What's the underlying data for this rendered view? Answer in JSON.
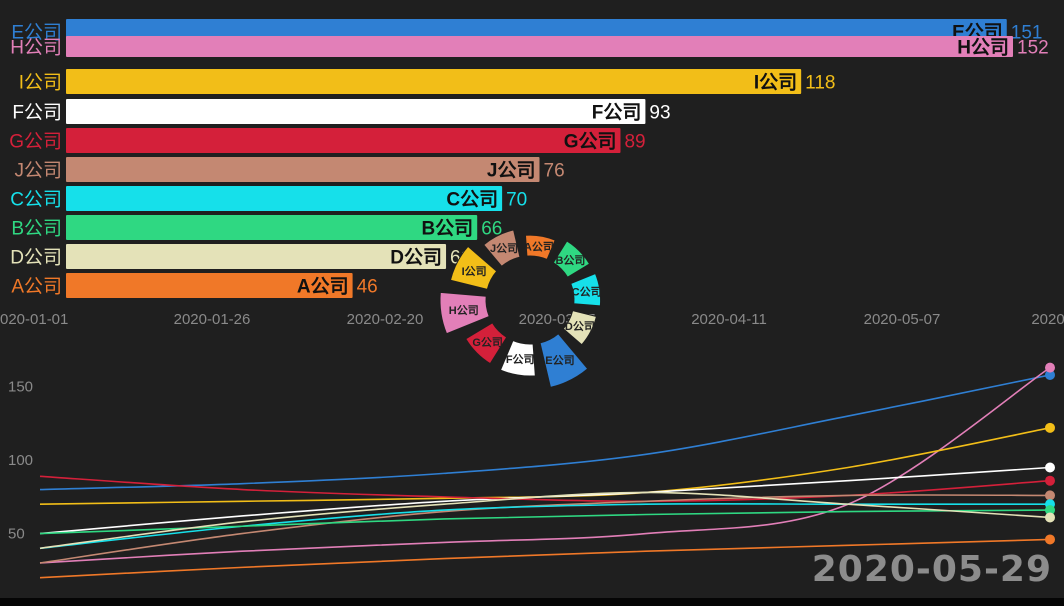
{
  "date_stamp": "2020-05-29",
  "chart_data": [
    {
      "type": "bar",
      "orientation": "horizontal",
      "categories": [
        "E公司",
        "H公司",
        "I公司",
        "F公司",
        "G公司",
        "J公司",
        "C公司",
        "B公司",
        "D公司",
        "A公司"
      ],
      "values": [
        151,
        152,
        118,
        93,
        89,
        76,
        70,
        66,
        61,
        46
      ],
      "colors": [
        "#2f7fd3",
        "#e27fb8",
        "#f2be18",
        "#ffffff",
        "#d4203a",
        "#c48872",
        "#16e0ea",
        "#2fd882",
        "#e4e2b8",
        "#f07828"
      ],
      "x_ticks": [
        "2020-01-01",
        "2020-01-26",
        "2020-02-20",
        "2020-03-17",
        "2020-04-11",
        "2020-05-07",
        "2020"
      ],
      "grid": false
    },
    {
      "type": "pie",
      "style": "rose",
      "categories": [
        "A公司",
        "B公司",
        "C公司",
        "D公司",
        "E公司",
        "F公司",
        "G公司",
        "H公司",
        "I公司",
        "J公司"
      ],
      "values": [
        46,
        66,
        70,
        61,
        151,
        93,
        89,
        152,
        118,
        76
      ],
      "colors": [
        "#f07828",
        "#2fd882",
        "#16e0ea",
        "#e4e2b8",
        "#2f7fd3",
        "#ffffff",
        "#d4203a",
        "#e27fb8",
        "#f2be18",
        "#c48872"
      ]
    },
    {
      "type": "line",
      "y_ticks": [
        50,
        100,
        150
      ],
      "ylim": [
        15,
        175
      ],
      "grid": false,
      "series": [
        {
          "name": "E公司",
          "color": "#2f7fd3",
          "values": [
            80,
            84,
            91,
            104,
            130,
            158
          ]
        },
        {
          "name": "H公司",
          "color": "#e27fb8",
          "values": [
            30,
            38,
            44,
            50,
            70,
            163
          ]
        },
        {
          "name": "I公司",
          "color": "#f2be18",
          "values": [
            70,
            72,
            74,
            78,
            95,
            122
          ]
        },
        {
          "name": "F公司",
          "color": "#ffffff",
          "values": [
            50,
            62,
            72,
            78,
            86,
            95
          ]
        },
        {
          "name": "G公司",
          "color": "#d4203a",
          "values": [
            89,
            80,
            75,
            72,
            76,
            86
          ]
        },
        {
          "name": "J公司",
          "color": "#c48872",
          "values": [
            30,
            50,
            65,
            72,
            76,
            76
          ]
        },
        {
          "name": "C公司",
          "color": "#16e0ea",
          "values": [
            40,
            55,
            66,
            70,
            70,
            70
          ]
        },
        {
          "name": "B公司",
          "color": "#2fd882",
          "values": [
            50,
            55,
            60,
            63,
            65,
            66
          ]
        },
        {
          "name": "D公司",
          "color": "#e4e2b8",
          "values": [
            40,
            58,
            70,
            78,
            70,
            61
          ]
        },
        {
          "name": "A公司",
          "color": "#f07828",
          "values": [
            20,
            27,
            33,
            38,
            42,
            46
          ]
        }
      ]
    }
  ]
}
